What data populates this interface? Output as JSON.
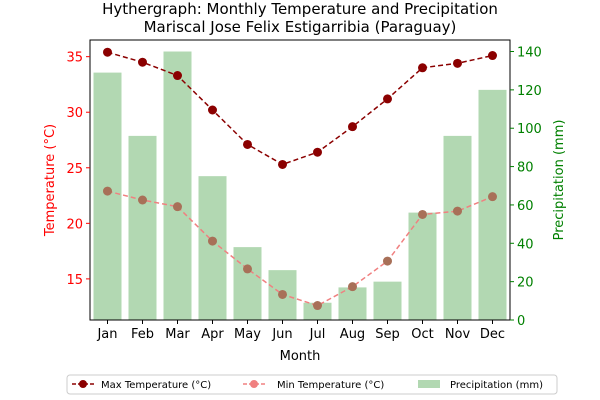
{
  "chart_data": {
    "type": "bar+line",
    "title": "Hythergraph: Monthly Temperature and Precipitation",
    "subtitle": "Mariscal Jose Felix Estigarribia (Paraguay)",
    "xlabel": "Month",
    "ylabel_left": "Temperature (°C)",
    "ylabel_right": "Precipitation (mm)",
    "categories": [
      "Jan",
      "Feb",
      "Mar",
      "Apr",
      "May",
      "Jun",
      "Jul",
      "Aug",
      "Sep",
      "Oct",
      "Nov",
      "Dec"
    ],
    "ylim_left": [
      11.3,
      36.5
    ],
    "yticks_left": [
      15,
      20,
      25,
      30,
      35
    ],
    "ylim_right": [
      0,
      146
    ],
    "yticks_right": [
      0,
      20,
      40,
      60,
      80,
      100,
      120,
      140
    ],
    "grid": false,
    "legend_placement": "bottom-center",
    "series": [
      {
        "name": "Max Temperature (°C)",
        "kind": "line",
        "axis": "left",
        "color": "#8b0000",
        "values": [
          35.4,
          34.5,
          33.3,
          30.2,
          27.1,
          25.3,
          26.4,
          28.7,
          31.2,
          34.0,
          34.4,
          35.1
        ]
      },
      {
        "name": "Min Temperature (°C)",
        "kind": "line",
        "axis": "left",
        "color": "#f08080",
        "values": [
          22.9,
          22.1,
          21.5,
          18.4,
          15.9,
          13.6,
          12.6,
          14.3,
          16.6,
          20.8,
          21.1,
          22.4
        ]
      },
      {
        "name": "Precipitation (mm)",
        "kind": "bar",
        "axis": "right",
        "color": "#b2d8b2",
        "values": [
          129,
          96,
          140,
          75,
          38,
          26,
          9,
          17,
          20,
          56,
          96,
          120
        ]
      }
    ]
  },
  "colors": {
    "left_axis": "#ff0000",
    "right_axis": "#008000",
    "marker_min": "#a87058"
  }
}
